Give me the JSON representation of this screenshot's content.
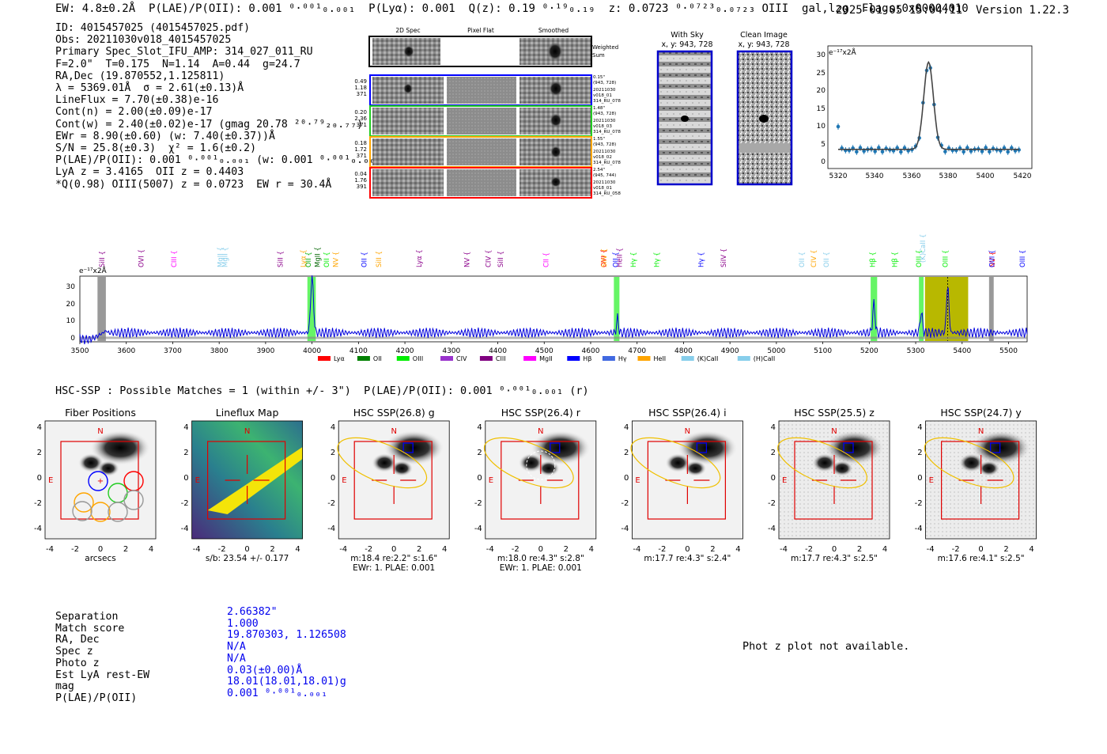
{
  "header": {
    "summary": "EW: 4.8±0.2Å  P(LAE)/P(OII): 0.001 ⁰·⁰⁰¹₀.₀₀₁  P(Lyα): 0.001  Q(z): 0.19 ⁰·¹⁹₀.₁₉  z: 0.0723 ⁰·⁰⁷²³₀.₀₇₂₃ OIII  gal,lzg  Flags:0x00004010",
    "timestamp": "2025-01-05 15:04:11  Version 1.22.3"
  },
  "info_lines": [
    "ID: 4015457025 (4015457025.pdf)",
    "Obs: 20211030v018_4015457025",
    "Primary Spec_Slot_IFU_AMP: 314_027_011_RU",
    "F=2.0\"  T=0.175  N=1.14  A=0.44  g=24.7",
    "RA,Dec (19.870552,1.125811)",
    "λ = 5369.01Å  σ = 2.61(±0.13)Å",
    "LineFlux = 7.70(±0.38)e-16",
    "Cont(n) = 2.00(±0.09)e-17",
    "Cont(w) = 2.40(±0.02)e-17 (gmag 20.78 ²⁰·⁷⁹₂₀.₇₇)",
    "EWr = 8.90(±0.60) (w: 7.40(±0.37))Å",
    "S/N = 25.8(±0.3)  χ² = 1.6(±0.2)",
    "P(LAE)/P(OII): 0.001 ⁰·⁰⁰¹₀.₀₀₁ (w: 0.001 ⁰·⁰⁰¹₀.₀₀₁)",
    "LyA z = 3.4165  OII z = 0.4403",
    "*Q(0.98) OIII(5007) z = 0.0723  EW r = 30.4Å"
  ],
  "cutouts": {
    "col_titles": [
      "2D Spec",
      "Pixel Flat",
      "Smoothed"
    ],
    "weighted_label": "Weighted Sum",
    "rows": [
      {
        "left": [
          "0.49",
          "1.18",
          "371"
        ],
        "right": [
          "0.15\"",
          "(943, 728)",
          "20211030",
          "v018_01",
          "314_RU_078"
        ],
        "color": "#0000ff"
      },
      {
        "left": [
          "0.20",
          "2.36",
          "371"
        ],
        "right": [
          "1.48\"",
          "(943, 728)",
          "20211030",
          "v018_03",
          "314_RU_078"
        ],
        "color": "#22cc22"
      },
      {
        "left": [
          "0.18",
          "1.72",
          "371"
        ],
        "right": [
          "1.55\"",
          "(943, 728)",
          "20211030",
          "v018_02",
          "314_RU_078"
        ],
        "color": "#ffa500"
      },
      {
        "left": [
          "0.04",
          "1.76",
          "391"
        ],
        "right": [
          "2.54\"",
          "(945, 744)",
          "20211030",
          "v018_01",
          "314_RU_058"
        ],
        "color": "#ff0000"
      }
    ]
  },
  "sky_panels": [
    {
      "title": "With Sky",
      "coords": "x, y: 943, 728"
    },
    {
      "title": "Clean Image",
      "coords": "x, y: 943, 728"
    }
  ],
  "zoom_plot": {
    "unit": "e⁻¹⁷x2Å",
    "x_ticks": [
      "5320",
      "5340",
      "5360",
      "5380",
      "5400",
      "5420"
    ],
    "y_ticks": [
      "0",
      "5",
      "10",
      "15",
      "20",
      "25",
      "30"
    ]
  },
  "spectrum": {
    "unit": "e⁻¹⁷x2Å",
    "x_ticks": [
      "3500",
      "3600",
      "3700",
      "3800",
      "3900",
      "4000",
      "4100",
      "4200",
      "4300",
      "4400",
      "4500",
      "4600",
      "4700",
      "4800",
      "4900",
      "5000",
      "5100",
      "5200",
      "5300",
      "5400",
      "5500"
    ],
    "y_ticks": [
      "0",
      "10",
      "20",
      "30"
    ],
    "lines": [
      {
        "label": "SiII",
        "w": 3553,
        "color": "#8b008b"
      },
      {
        "label": "OVI",
        "w": 3637,
        "color": "#8b008b"
      },
      {
        "label": "CIII",
        "w": 3708,
        "color": "#ff00ff"
      },
      {
        "label": "MgII",
        "w": 3807,
        "color": "#87ceeb"
      },
      {
        "label": "MgII",
        "w": 3818,
        "color": "#87ceeb"
      },
      {
        "label": "SiII",
        "w": 3937,
        "color": "#8b008b"
      },
      {
        "label": "Lyα",
        "w": 3986,
        "color": "#ffa500"
      },
      {
        "label": "OII",
        "w": 3997,
        "color": "#00aa00"
      },
      {
        "label": "OII",
        "w": 4036,
        "color": "#00ee00"
      },
      {
        "label": "MgII",
        "w": 4017,
        "color": "#006400"
      },
      {
        "label": "NV",
        "w": 4056,
        "color": "#ffa500"
      },
      {
        "label": "OII",
        "w": 4117,
        "color": "#0000ff"
      },
      {
        "label": "SiII",
        "w": 4149,
        "color": "#ffa500"
      },
      {
        "label": "Lyα",
        "w": 4236,
        "color": "#8b008b"
      },
      {
        "label": "NV",
        "w": 4339,
        "color": "#8b008b"
      },
      {
        "label": "CIV",
        "w": 4385,
        "color": "#8b008b"
      },
      {
        "label": "SiII",
        "w": 4411,
        "color": "#8b008b"
      },
      {
        "label": "CII",
        "w": 4509,
        "color": "#ff00ff"
      },
      {
        "label": "OVI",
        "w": 4633,
        "color": "#ff0000"
      },
      {
        "label": "SiIV",
        "w": 4634,
        "color": "#ffa500"
      },
      {
        "label": "OII",
        "w": 4659,
        "color": "#0000ff"
      },
      {
        "label": "HeII",
        "w": 4667,
        "color": "#8b008b"
      },
      {
        "label": "Hγ",
        "w": 4697,
        "color": "#00ee00"
      },
      {
        "label": "Hγ",
        "w": 4747,
        "color": "#00ee00"
      },
      {
        "label": "Hγ",
        "w": 4843,
        "color": "#0000ff"
      },
      {
        "label": "SiIV",
        "w": 4891,
        "color": "#8b008b"
      },
      {
        "label": "OII",
        "w": 5060,
        "color": "#87ceeb"
      },
      {
        "label": "CIV",
        "w": 5085,
        "color": "#ffa500"
      },
      {
        "label": "OII",
        "w": 5113,
        "color": "#87ceeb"
      },
      {
        "label": "Hβ",
        "w": 5212,
        "color": "#00ee00"
      },
      {
        "label": "Hβ",
        "w": 5260,
        "color": "#00ee00"
      },
      {
        "label": "OIII",
        "w": 5312,
        "color": "#00ee00"
      },
      {
        "label": "(K)CaII",
        "w": 5320,
        "color": "#87ceeb"
      },
      {
        "label": "OIII",
        "w": 5369,
        "color": "#00ee00"
      },
      {
        "label": "NV",
        "w": 5470,
        "color": "#ff0000"
      },
      {
        "label": "OIII",
        "w": 5469,
        "color": "#0000ff"
      },
      {
        "label": "OIII",
        "w": 5535,
        "color": "#0000ff"
      }
    ],
    "legend": [
      {
        "label": "Lyα",
        "color": "#ff0000"
      },
      {
        "label": "OII",
        "color": "#008000"
      },
      {
        "label": "OIII",
        "color": "#00ee00"
      },
      {
        "label": "CIV",
        "color": "#9932cc"
      },
      {
        "label": "CIII",
        "color": "#800080"
      },
      {
        "label": "MgII",
        "color": "#ff00ff"
      },
      {
        "label": "Hβ",
        "color": "#0000ff"
      },
      {
        "label": "Hγ",
        "color": "#4169e1"
      },
      {
        "label": "HeII",
        "color": "#ffa500"
      },
      {
        "label": "(K)CaII",
        "color": "#87ceeb"
      },
      {
        "label": "(H)CaII",
        "color": "#87ceeb"
      }
    ]
  },
  "hsc": {
    "header": "HSC-SSP : Possible Matches = 1 (within +/- 3\")  P(LAE)/P(OII): 0.001 ⁰·⁰⁰¹₀.₀₀₁ (r)",
    "panels": [
      {
        "title": "Fiber Positions",
        "xlabel": "arcsecs",
        "stats": [
          "",
          ""
        ]
      },
      {
        "title": "Lineflux Map",
        "xlabel": "s/b: 23.54 +/- 0.177",
        "stats": [
          "",
          ""
        ]
      },
      {
        "title": "HSC SSP(26.8) g",
        "xlabel": "m:18.4  re:2.2\"  s:1.6\"",
        "stats": [
          "EWr: 1. PLAE: 0.001",
          ""
        ]
      },
      {
        "title": "HSC SSP(26.4) r",
        "xlabel": "m:18.0  re:4.3\"  s:2.8\"",
        "stats": [
          "EWr: 1. PLAE: 0.001",
          ""
        ]
      },
      {
        "title": "HSC SSP(26.4) i",
        "xlabel": "m:17.7  re:4.3\"  s:2.4\"",
        "stats": [
          "",
          ""
        ]
      },
      {
        "title": "HSC SSP(25.5) z",
        "xlabel": "m:17.7  re:4.3\"  s:2.5\"",
        "stats": [
          "",
          ""
        ]
      },
      {
        "title": "HSC SSP(24.7) y",
        "xlabel": "m:17.6  re:4.1\"  s:2.5\"",
        "stats": [
          "",
          ""
        ]
      }
    ],
    "axis_ticks": [
      "-4",
      "-2",
      "0",
      "2",
      "4"
    ],
    "n_label": "N",
    "e_label": "E"
  },
  "match": {
    "labels": [
      "Separation",
      "Match score",
      "RA, Dec",
      "Spec z",
      "Photo z",
      "Est LyA rest-EW",
      "mag",
      "P(LAE)/P(OII)"
    ],
    "values": [
      "2.66382\"",
      "1.000",
      "19.870303, 1.126508",
      "N/A",
      "N/A",
      "0.03(±0.00)Å",
      "18.01(18.01,18.01)g",
      "0.001 ⁰·⁰⁰¹₀.₀₀₁"
    ]
  },
  "phot_note": "Phot z plot not available."
}
